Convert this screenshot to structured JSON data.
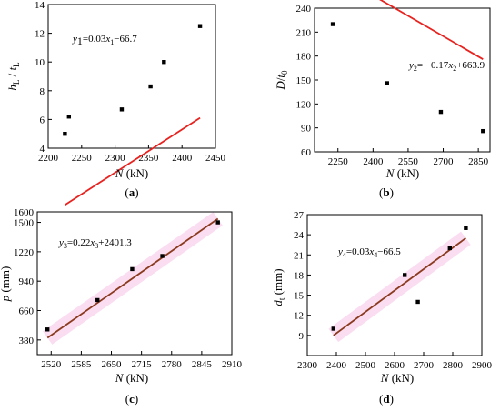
{
  "chart_data": [
    {
      "type": "scatter",
      "panel_label": "(a)",
      "xlabel": "N (kN)",
      "ylabel": "hL / tL",
      "equation": "y1=0.03x1−66.7",
      "xlim": [
        2200,
        2450
      ],
      "ylim": [
        4,
        14
      ],
      "xticks": [
        2200,
        2250,
        2300,
        2350,
        2400,
        2450
      ],
      "yticks": [
        4,
        6,
        8,
        10,
        12,
        14
      ],
      "points": [
        {
          "x": 2225,
          "y": 5.0
        },
        {
          "x": 2231,
          "y": 6.2
        },
        {
          "x": 2310,
          "y": 6.7
        },
        {
          "x": 2353,
          "y": 8.3
        },
        {
          "x": 2373,
          "y": 10.0
        },
        {
          "x": 2427,
          "y": 12.5
        }
      ],
      "fit": {
        "slope": 0.03,
        "intercept": -66.7,
        "x_range": [
          2225,
          2427
        ]
      },
      "line_color": "#e8221f",
      "point_color": "#000000",
      "band": false
    },
    {
      "type": "scatter",
      "panel_label": "(b)",
      "xlabel": "N (kN)",
      "ylabel": "D/t0",
      "equation": "y2= −0.17x2+663.9",
      "xlim": [
        2150,
        2900
      ],
      "ylim": [
        60,
        240
      ],
      "xticks": [
        2250,
        2400,
        2550,
        2700,
        2850
      ],
      "yticks": [
        60,
        90,
        120,
        150,
        180,
        210,
        240
      ],
      "points": [
        {
          "x": 2228,
          "y": 220
        },
        {
          "x": 2460,
          "y": 146
        },
        {
          "x": 2690,
          "y": 110
        },
        {
          "x": 2870,
          "y": 86
        }
      ],
      "fit": {
        "slope": -0.17,
        "intercept": 663.9,
        "x_range": [
          2225,
          2870
        ]
      },
      "line_color": "#e8221f",
      "point_color": "#000000",
      "band": false
    },
    {
      "type": "scatter",
      "panel_label": "(c)",
      "xlabel": "N (kN)",
      "ylabel": "p (mm)",
      "equation": "y3=0.22x3+2401.3",
      "xlim": [
        2490,
        2910
      ],
      "ylim": [
        240,
        1600
      ],
      "xticks": [
        2520,
        2585,
        2650,
        2715,
        2780,
        2845,
        2910
      ],
      "yticks": [
        380,
        660,
        940,
        1220,
        1500
      ],
      "yticks_extra": [
        1600
      ],
      "points": [
        {
          "x": 2512,
          "y": 480
        },
        {
          "x": 2620,
          "y": 760
        },
        {
          "x": 2695,
          "y": 1055
        },
        {
          "x": 2760,
          "y": 1180
        },
        {
          "x": 2880,
          "y": 1500
        }
      ],
      "fit": {
        "x_range": [
          2512,
          2880
        ],
        "y_range": [
          400,
          1535
        ]
      },
      "line_color": "#8b3a1e",
      "point_color": "#000000",
      "band": true,
      "band_color": "#f6c6e8"
    },
    {
      "type": "scatter",
      "panel_label": "(d)",
      "xlabel": "N (kN)",
      "ylabel": "dt (mm)",
      "equation": "y4=0.03x4−66.5",
      "xlim": [
        2300,
        2900
      ],
      "ylim": [
        6,
        27
      ],
      "xticks": [
        2300,
        2400,
        2500,
        2600,
        2700,
        2800,
        2900
      ],
      "yticks": [
        9,
        12,
        15,
        18,
        21,
        24,
        27
      ],
      "points": [
        {
          "x": 2390,
          "y": 10.0
        },
        {
          "x": 2635,
          "y": 18.0
        },
        {
          "x": 2680,
          "y": 14.0
        },
        {
          "x": 2790,
          "y": 22.0
        },
        {
          "x": 2845,
          "y": 25.0
        }
      ],
      "fit": {
        "x_range": [
          2390,
          2845
        ],
        "y_range": [
          9.0,
          23.5
        ]
      },
      "line_color": "#8b3a1e",
      "point_color": "#000000",
      "band": true,
      "band_color": "#f6c6e8"
    }
  ]
}
